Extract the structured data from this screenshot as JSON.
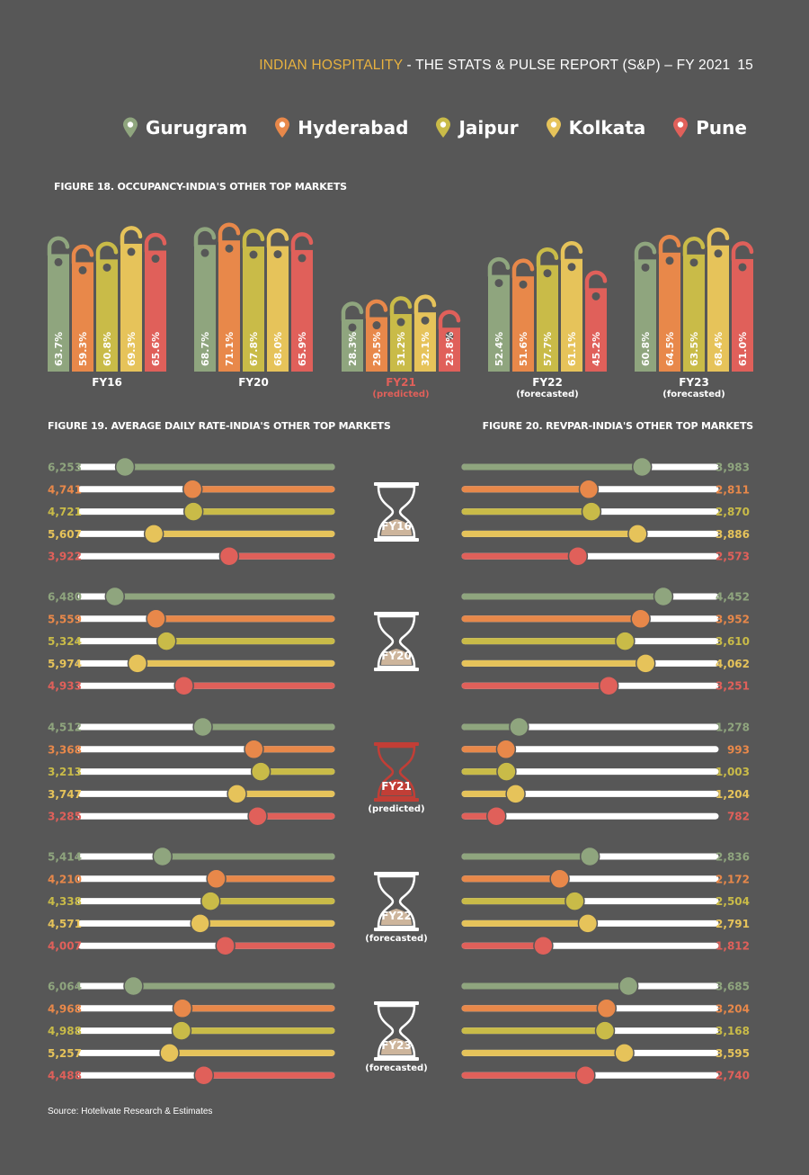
{
  "header": {
    "brand": "INDIAN HOSPITALITY",
    "rest": " - THE STATS & PULSE REPORT (S&P) – FY 2021",
    "page": "15"
  },
  "legend": [
    {
      "name": "Gurugram",
      "color": "#8fa57e",
      "icon": "map-pin-icon"
    },
    {
      "name": "Hyderabad",
      "color": "#e8884a",
      "icon": "map-pin-icon"
    },
    {
      "name": "Jaipur",
      "color": "#c9bb48",
      "icon": "map-pin-icon"
    },
    {
      "name": "Kolkata",
      "color": "#e6c35a",
      "icon": "map-pin-icon"
    },
    {
      "name": "Pune",
      "color": "#e0605a",
      "icon": "map-pin-icon"
    }
  ],
  "colors": {
    "predicted": "#e0605a",
    "hourglass": "#cdb59c",
    "predicted_glass": "#c23e36"
  },
  "source": "Source: Hotelivate Research & Estimates",
  "chart_data": [
    {
      "type": "bar",
      "title": "FIGURE 18. OCCUPANCY-INDIA'S OTHER TOP MARKETS",
      "unit": "%",
      "categories": [
        "FY16",
        "FY20",
        "FY21",
        "FY22",
        "FY23"
      ],
      "category_notes": [
        "",
        "",
        "(predicted)",
        "(forecasted)",
        "(forecasted)"
      ],
      "series": [
        {
          "name": "Gurugram",
          "values": [
            63.7,
            68.7,
            28.3,
            52.4,
            60.8
          ]
        },
        {
          "name": "Hyderabad",
          "values": [
            59.3,
            71.1,
            29.5,
            51.6,
            64.5
          ]
        },
        {
          "name": "Jaipur",
          "values": [
            60.8,
            67.8,
            31.2,
            57.7,
            63.5
          ]
        },
        {
          "name": "Kolkata",
          "values": [
            69.3,
            68.0,
            32.1,
            61.1,
            68.4
          ]
        },
        {
          "name": "Pune",
          "values": [
            65.6,
            65.9,
            23.8,
            45.2,
            61.0
          ]
        }
      ]
    },
    {
      "type": "bar",
      "title": "FIGURE 19. AVERAGE DAILY RATE-INDIA'S OTHER TOP MARKETS",
      "categories": [
        "FY16",
        "FY20",
        "FY21",
        "FY22",
        "FY23"
      ],
      "series": [
        {
          "name": "Gurugram",
          "values": [
            6253,
            6480,
            4512,
            5414,
            6064
          ],
          "labels": [
            "6,253",
            "6,480",
            "4,512",
            "5,414",
            "6,064"
          ]
        },
        {
          "name": "Hyderabad",
          "values": [
            4741,
            5559,
            3368,
            4210,
            4968
          ],
          "labels": [
            "4,741",
            "5,559",
            "3,368",
            "4,210",
            "4,968"
          ]
        },
        {
          "name": "Jaipur",
          "values": [
            4721,
            5324,
            3213,
            4338,
            4988
          ],
          "labels": [
            "4,721",
            "5,324",
            "3,213",
            "4,338",
            "4,988"
          ]
        },
        {
          "name": "Kolkata",
          "values": [
            5607,
            5974,
            3747,
            4571,
            5257
          ],
          "labels": [
            "5,607",
            "5,974",
            "3,747",
            "4,571",
            "5,257"
          ]
        },
        {
          "name": "Pune",
          "values": [
            3922,
            4933,
            3285,
            4007,
            4488
          ],
          "labels": [
            "3,922",
            "4,933",
            "3,285",
            "4,007",
            "4,488"
          ]
        }
      ]
    },
    {
      "type": "bar",
      "title": "FIGURE 20. REVPAR-INDIA'S OTHER TOP MARKETS",
      "categories": [
        "FY16",
        "FY20",
        "FY21",
        "FY22",
        "FY23"
      ],
      "series": [
        {
          "name": "Gurugram",
          "values": [
            3983,
            4452,
            1278,
            2836,
            3685
          ],
          "labels": [
            "3,983",
            "4,452",
            "1,278",
            "2,836",
            "3,685"
          ]
        },
        {
          "name": "Hyderabad",
          "values": [
            2811,
            3952,
            993,
            2172,
            3204
          ],
          "labels": [
            "2,811",
            "3,952",
            "993",
            "2,172",
            "3,204"
          ]
        },
        {
          "name": "Jaipur",
          "values": [
            2870,
            3610,
            1003,
            2504,
            3168
          ],
          "labels": [
            "2,870",
            "3,610",
            "1,003",
            "2,504",
            "3,168"
          ]
        },
        {
          "name": "Kolkata",
          "values": [
            3886,
            4062,
            1204,
            2791,
            3595
          ],
          "labels": [
            "3,886",
            "4,062",
            "1,204",
            "2,791",
            "3,595"
          ]
        },
        {
          "name": "Pune",
          "values": [
            2573,
            3251,
            782,
            1812,
            2740
          ],
          "labels": [
            "2,573",
            "3,251",
            "782",
            "1,812",
            "2,740"
          ]
        }
      ]
    }
  ]
}
